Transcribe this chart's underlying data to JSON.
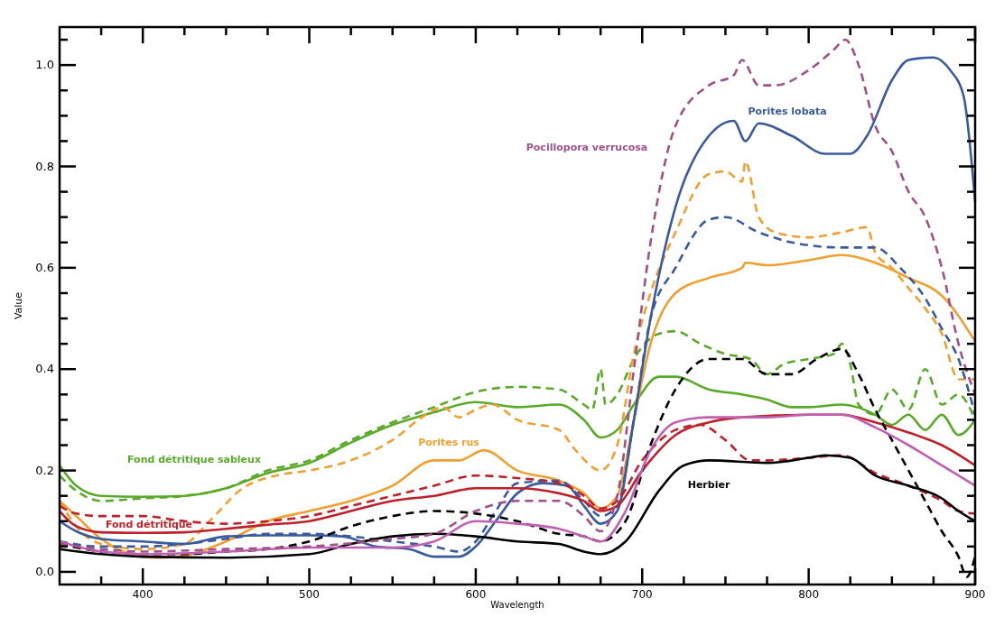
{
  "chart_data": {
    "type": "line",
    "xlabel": "Wavelength",
    "ylabel": "Value",
    "xlim": [
      350,
      900
    ],
    "ylim": [
      -0.025,
      1.075
    ],
    "xticks": [
      {
        "value": 375,
        "label": null
      },
      400,
      {
        "value": 425,
        "label": null
      },
      {
        "value": 450,
        "label": null
      },
      {
        "value": 475,
        "label": null
      },
      500,
      {
        "value": 525,
        "label": null
      },
      {
        "value": 550,
        "label": null
      },
      {
        "value": 575,
        "label": null
      },
      600,
      {
        "value": 625,
        "label": null
      },
      {
        "value": 650,
        "label": null
      },
      {
        "value": 675,
        "label": null
      },
      700,
      {
        "value": 725,
        "label": null
      },
      {
        "value": 750,
        "label": null
      },
      {
        "value": 775,
        "label": null
      },
      800,
      {
        "value": 825,
        "label": null
      },
      {
        "value": 850,
        "label": null
      },
      {
        "value": 875,
        "label": null
      },
      900
    ],
    "yticks": [
      {
        "value": 0,
        "label": "0.0"
      },
      {
        "value": 0.05,
        "label": null
      },
      {
        "value": 0.1,
        "label": null
      },
      {
        "value": 0.15,
        "label": null
      },
      0.2,
      {
        "value": 0.25,
        "label": null
      },
      {
        "value": 0.3,
        "label": null
      },
      {
        "value": 0.35,
        "label": null
      },
      0.4,
      {
        "value": 0.45,
        "label": null
      },
      {
        "value": 0.5,
        "label": null
      },
      {
        "value": 0.55,
        "label": null
      },
      0.6,
      {
        "value": 0.65,
        "label": null
      },
      {
        "value": 0.7,
        "label": null
      },
      {
        "value": 0.75,
        "label": null
      },
      0.8,
      {
        "value": 0.85,
        "label": null
      },
      {
        "value": 0.9,
        "label": null
      },
      {
        "value": 0.95,
        "label": null
      },
      {
        "value": 1,
        "label": "1.0"
      },
      {
        "value": 1.05,
        "label": null
      }
    ],
    "grid": false,
    "series": [
      {
        "name": "Fond détritique sableux",
        "color": "#5aaa2a",
        "line_style": "solid",
        "x": [
          350,
          360,
          375,
          400,
          425,
          450,
          475,
          500,
          525,
          550,
          575,
          600,
          625,
          650,
          665,
          675,
          685,
          695,
          710,
          720,
          740,
          760,
          775,
          790,
          800,
          820,
          840,
          850,
          860,
          870,
          880,
          890,
          900
        ],
        "values": [
          0.21,
          0.17,
          0.15,
          0.148,
          0.15,
          0.165,
          0.195,
          0.215,
          0.255,
          0.29,
          0.315,
          0.335,
          0.325,
          0.33,
          0.3,
          0.265,
          0.28,
          0.33,
          0.385,
          0.385,
          0.36,
          0.35,
          0.34,
          0.325,
          0.325,
          0.33,
          0.31,
          0.29,
          0.31,
          0.28,
          0.31,
          0.27,
          0.3
        ]
      },
      {
        "color": "#5aaa2a",
        "line_style": "dashed",
        "x": [
          350,
          360,
          375,
          400,
          425,
          450,
          475,
          500,
          525,
          550,
          575,
          600,
          625,
          650,
          665,
          670,
          675,
          678,
          685,
          695,
          710,
          720,
          735,
          750,
          765,
          775,
          785,
          800,
          815,
          820,
          825,
          830,
          840,
          850,
          860,
          870,
          880,
          890,
          900
        ],
        "values": [
          0.19,
          0.16,
          0.14,
          0.145,
          0.15,
          0.165,
          0.2,
          0.22,
          0.26,
          0.295,
          0.325,
          0.355,
          0.365,
          0.36,
          0.33,
          0.32,
          0.4,
          0.33,
          0.35,
          0.42,
          0.47,
          0.475,
          0.45,
          0.43,
          0.42,
          0.39,
          0.41,
          0.42,
          0.43,
          0.45,
          0.41,
          0.33,
          0.31,
          0.36,
          0.32,
          0.4,
          0.33,
          0.35,
          0.3
        ]
      },
      {
        "name": "Porites rus",
        "color": "#f0a030",
        "line_style": "solid",
        "x": [
          350,
          360,
          375,
          400,
          410,
          425,
          450,
          475,
          500,
          525,
          550,
          575,
          590,
          605,
          625,
          650,
          665,
          675,
          685,
          695,
          705,
          720,
          740,
          760,
          762,
          775,
          800,
          820,
          840,
          860,
          880,
          900
        ],
        "values": [
          0.14,
          0.11,
          0.065,
          0.03,
          0.028,
          0.032,
          0.06,
          0.1,
          0.12,
          0.14,
          0.17,
          0.22,
          0.22,
          0.24,
          0.2,
          0.18,
          0.155,
          0.125,
          0.15,
          0.3,
          0.45,
          0.55,
          0.58,
          0.6,
          0.61,
          0.605,
          0.615,
          0.625,
          0.61,
          0.58,
          0.545,
          0.455
        ]
      },
      {
        "color": "#f0a030",
        "line_style": "dashed",
        "x": [
          350,
          360,
          375,
          400,
          425,
          440,
          460,
          480,
          500,
          525,
          550,
          570,
          580,
          590,
          600,
          610,
          625,
          650,
          660,
          675,
          685,
          695,
          705,
          720,
          740,
          750,
          760,
          762,
          770,
          780,
          800,
          820,
          835,
          840,
          850,
          860,
          870,
          880,
          890,
          900
        ],
        "values": [
          0.14,
          0.09,
          0.055,
          0.045,
          0.055,
          0.1,
          0.165,
          0.19,
          0.2,
          0.22,
          0.26,
          0.31,
          0.325,
          0.305,
          0.32,
          0.33,
          0.3,
          0.28,
          0.24,
          0.2,
          0.25,
          0.43,
          0.55,
          0.67,
          0.785,
          0.79,
          0.77,
          0.81,
          0.7,
          0.67,
          0.66,
          0.67,
          0.68,
          0.63,
          0.6,
          0.56,
          0.52,
          0.47,
          0.38,
          0.38
        ]
      },
      {
        "name": "Porites lobata",
        "color": "#3a5aa0",
        "line_style": "solid",
        "x": [
          350,
          360,
          375,
          400,
          425,
          450,
          475,
          500,
          520,
          540,
          560,
          575,
          590,
          600,
          612,
          625,
          640,
          655,
          665,
          675,
          685,
          695,
          705,
          720,
          740,
          755,
          762,
          770,
          790,
          810,
          825,
          835,
          850,
          860,
          875,
          885,
          893,
          900
        ],
        "values": [
          0.1,
          0.08,
          0.065,
          0.06,
          0.055,
          0.07,
          0.072,
          0.072,
          0.07,
          0.05,
          0.045,
          0.03,
          0.03,
          0.05,
          0.1,
          0.155,
          0.175,
          0.17,
          0.13,
          0.095,
          0.12,
          0.3,
          0.5,
          0.72,
          0.86,
          0.89,
          0.85,
          0.885,
          0.86,
          0.825,
          0.825,
          0.86,
          0.97,
          1.01,
          1.015,
          0.99,
          0.94,
          0.73
        ]
      },
      {
        "color": "#3a5aa0",
        "line_style": "dashed",
        "x": [
          350,
          375,
          400,
          425,
          450,
          475,
          500,
          525,
          550,
          575,
          590,
          600,
          612,
          625,
          650,
          665,
          675,
          685,
          695,
          705,
          720,
          740,
          750,
          770,
          790,
          820,
          840,
          855,
          870,
          880,
          890,
          900
        ],
        "values": [
          0.06,
          0.05,
          0.05,
          0.055,
          0.065,
          0.075,
          0.075,
          0.07,
          0.06,
          0.05,
          0.04,
          0.06,
          0.12,
          0.175,
          0.18,
          0.14,
          0.11,
          0.13,
          0.3,
          0.5,
          0.6,
          0.695,
          0.7,
          0.67,
          0.65,
          0.64,
          0.64,
          0.6,
          0.54,
          0.48,
          0.42,
          0.31
        ]
      },
      {
        "color": "#c0202a",
        "line_style": "solid",
        "x": [
          350,
          360,
          375,
          400,
          425,
          450,
          475,
          500,
          525,
          550,
          575,
          600,
          625,
          650,
          665,
          675,
          685,
          700,
          720,
          740,
          760,
          800,
          820,
          840,
          860,
          880,
          900
        ],
        "values": [
          0.12,
          0.09,
          0.078,
          0.077,
          0.078,
          0.085,
          0.093,
          0.1,
          0.12,
          0.14,
          0.15,
          0.165,
          0.165,
          0.155,
          0.14,
          0.12,
          0.13,
          0.2,
          0.27,
          0.295,
          0.305,
          0.31,
          0.31,
          0.295,
          0.275,
          0.25,
          0.21
        ]
      },
      {
        "name": "Fond détritique",
        "color": "#c0202a",
        "line_style": "dashed",
        "x": [
          350,
          360,
          375,
          400,
          425,
          450,
          475,
          500,
          525,
          550,
          575,
          600,
          625,
          650,
          665,
          675,
          685,
          700,
          720,
          735,
          750,
          765,
          775,
          800,
          820,
          840,
          860,
          880,
          890,
          900
        ],
        "values": [
          0.13,
          0.115,
          0.11,
          0.11,
          0.1,
          0.095,
          0.1,
          0.11,
          0.13,
          0.15,
          0.17,
          0.19,
          0.185,
          0.175,
          0.15,
          0.125,
          0.14,
          0.22,
          0.28,
          0.29,
          0.26,
          0.22,
          0.22,
          0.225,
          0.23,
          0.195,
          0.17,
          0.14,
          0.12,
          0.115
        ]
      },
      {
        "name": "Herbier",
        "color": "#000000",
        "line_style": "solid",
        "x": [
          350,
          375,
          400,
          450,
          500,
          525,
          550,
          575,
          600,
          625,
          650,
          665,
          675,
          690,
          710,
          725,
          740,
          775,
          800,
          810,
          825,
          840,
          860,
          880,
          890,
          900
        ],
        "values": [
          0.045,
          0.035,
          0.03,
          0.028,
          0.035,
          0.055,
          0.07,
          0.075,
          0.07,
          0.06,
          0.055,
          0.04,
          0.035,
          0.06,
          0.16,
          0.21,
          0.22,
          0.215,
          0.225,
          0.23,
          0.225,
          0.19,
          0.17,
          0.145,
          0.12,
          0.1
        ]
      },
      {
        "color": "#000000",
        "line_style": "dashed",
        "x": [
          350,
          375,
          400,
          425,
          450,
          475,
          500,
          525,
          550,
          575,
          600,
          625,
          650,
          665,
          675,
          690,
          705,
          720,
          740,
          760,
          775,
          790,
          805,
          820,
          830,
          840,
          850,
          860,
          870,
          880,
          890,
          895,
          900
        ],
        "values": [
          0.055,
          0.04,
          0.035,
          0.035,
          0.04,
          0.045,
          0.06,
          0.09,
          0.11,
          0.12,
          0.115,
          0.1,
          0.075,
          0.07,
          0.06,
          0.1,
          0.25,
          0.36,
          0.42,
          0.42,
          0.39,
          0.39,
          0.42,
          0.44,
          0.39,
          0.32,
          0.26,
          0.2,
          0.14,
          0.08,
          0.03,
          -0.01,
          0.03
        ]
      },
      {
        "color": "#c060b0",
        "line_style": "solid",
        "x": [
          350,
          375,
          400,
          450,
          500,
          550,
          575,
          600,
          625,
          650,
          665,
          675,
          690,
          705,
          720,
          740,
          775,
          800,
          820,
          840,
          860,
          880,
          900
        ],
        "values": [
          0.06,
          0.04,
          0.035,
          0.04,
          0.048,
          0.048,
          0.06,
          0.1,
          0.095,
          0.085,
          0.07,
          0.06,
          0.12,
          0.24,
          0.295,
          0.305,
          0.305,
          0.31,
          0.31,
          0.285,
          0.25,
          0.21,
          0.17
        ]
      },
      {
        "name": "Pocillopora verrucosa",
        "color": "#a0508a",
        "line_style": "dashed",
        "x": [
          350,
          375,
          400,
          450,
          500,
          550,
          575,
          600,
          625,
          650,
          665,
          675,
          685,
          695,
          705,
          720,
          740,
          755,
          760,
          770,
          780,
          800,
          815,
          822,
          830,
          840,
          850,
          860,
          870,
          880,
          890,
          900
        ],
        "values": [
          0.055,
          0.045,
          0.04,
          0.045,
          0.05,
          0.065,
          0.075,
          0.12,
          0.14,
          0.14,
          0.11,
          0.08,
          0.15,
          0.4,
          0.65,
          0.88,
          0.96,
          0.98,
          1.01,
          0.96,
          0.96,
          0.99,
          1.03,
          1.05,
          1,
          0.88,
          0.83,
          0.75,
          0.7,
          0.6,
          0.45,
          0.35
        ]
      }
    ]
  }
}
